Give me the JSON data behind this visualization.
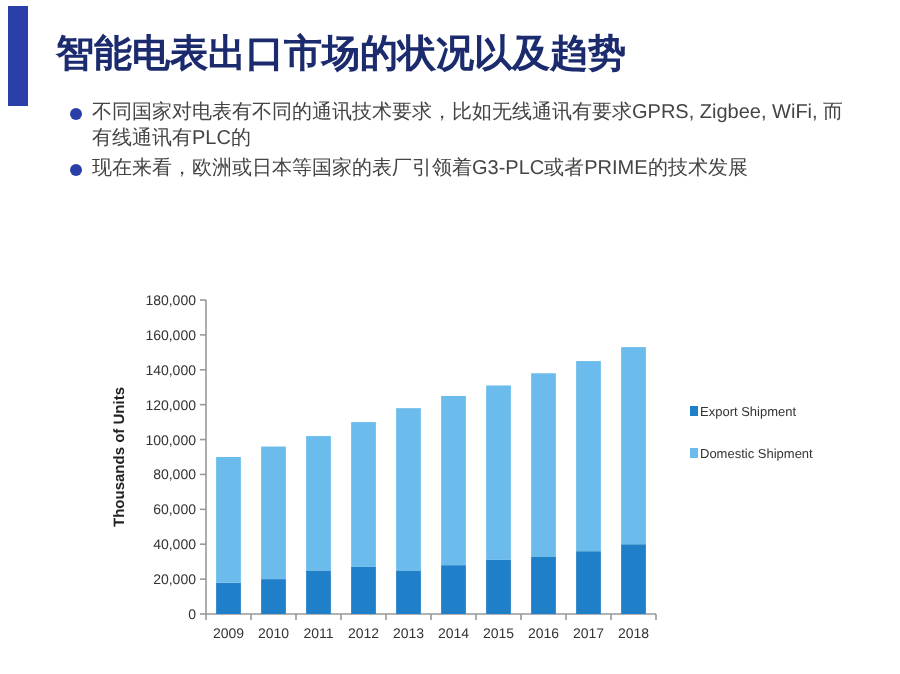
{
  "chart_data": {
    "type": "bar",
    "stacked": true,
    "title": "智能电表出口市场的状况以及趋势",
    "annotations": [
      "不同国家对电表有不同的通讯技术要求，比如无线通讯有要求GPRS, Zigbee, WiFi, 而有线通讯有PLC的",
      "现在来看，欧洲或日本等国家的表厂引领着G3-PLC或者PRIME的技术发展"
    ],
    "ylabel": "Thousands of Units",
    "categories": [
      "2009",
      "2010",
      "2011",
      "2012",
      "2013",
      "2014",
      "2015",
      "2016",
      "2017",
      "2018"
    ],
    "series": [
      {
        "name": "Export Shipment",
        "color": "#1f7fc8",
        "values": [
          18000,
          20000,
          25000,
          27000,
          25000,
          28000,
          31000,
          33000,
          36000,
          40000
        ]
      },
      {
        "name": "Domestic Shipment",
        "color": "#6bbcec",
        "values": [
          72000,
          76000,
          77000,
          83000,
          93000,
          97000,
          100000,
          105000,
          109000,
          113000
        ]
      }
    ],
    "ylim": [
      0,
      180000
    ],
    "yticks": [
      {
        "value": 0,
        "label": "0"
      },
      {
        "value": 20000,
        "label": "20,000"
      },
      {
        "value": 40000,
        "label": "40,000"
      },
      {
        "value": 60000,
        "label": "60,000"
      },
      {
        "value": 80000,
        "label": "80,000"
      },
      {
        "value": 100000,
        "label": "100,000"
      },
      {
        "value": 120000,
        "label": "120,000"
      },
      {
        "value": 140000,
        "label": "140,000"
      },
      {
        "value": 160000,
        "label": "160,000"
      },
      {
        "value": 180000,
        "label": "180,000"
      }
    ],
    "legend": "right"
  }
}
